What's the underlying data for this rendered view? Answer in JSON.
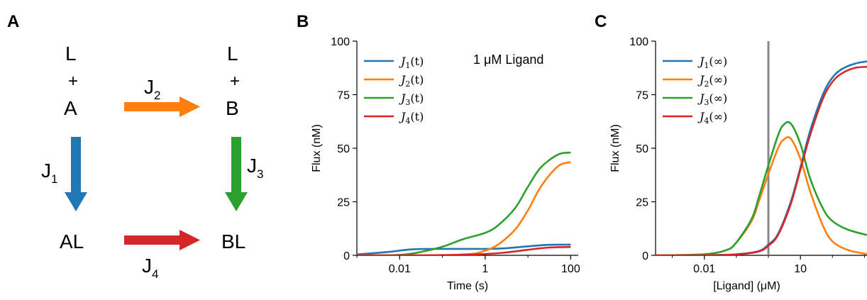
{
  "panel_labels": [
    "A",
    "B",
    "C"
  ],
  "scheme": {
    "top_left": {
      "top": "L",
      "plus": "+",
      "species": "A"
    },
    "top_right": {
      "top": "L",
      "plus": "+",
      "species": "B"
    },
    "bottom_left": "AL",
    "bottom_right": "BL",
    "fluxes": [
      {
        "base": "J",
        "sub": "1",
        "color": "#1f77b4"
      },
      {
        "base": "J",
        "sub": "2",
        "color": "#ff7f0e"
      },
      {
        "base": "J",
        "sub": "3",
        "color": "#2ca02c"
      },
      {
        "base": "J",
        "sub": "4",
        "color": "#d62728"
      }
    ]
  },
  "chart_data": [
    {
      "type": "line",
      "panel": "B",
      "xlabel": "Time (s)",
      "ylabel": "Flux (nM)",
      "xscale": "log",
      "xlim": [
        0.001,
        150
      ],
      "ylim": [
        0,
        100
      ],
      "xticks": [
        {
          "value": 0.01,
          "label": "0.01"
        },
        {
          "value": 1,
          "label": "1"
        },
        {
          "value": 100,
          "label": "100"
        }
      ],
      "yticks": [
        {
          "value": 0,
          "label": "0"
        },
        {
          "value": 25,
          "label": "25"
        },
        {
          "value": 50,
          "label": "50"
        },
        {
          "value": 75,
          "label": "75"
        },
        {
          "value": 100,
          "label": "100"
        }
      ],
      "annotation": "1 μM Ligand",
      "legend_position": "top-left",
      "series": [
        {
          "name": "J1(t)",
          "legend": {
            "base": "J",
            "sub": "1",
            "rest": "(t)"
          },
          "color": "#1f77b4",
          "x": [
            0.001,
            0.005,
            0.02,
            0.1,
            0.5,
            1,
            3,
            10,
            30,
            100
          ],
          "y": [
            0.4,
            1.5,
            2.8,
            3.0,
            3.0,
            3.0,
            3.3,
            4.2,
            4.9,
            5.0
          ]
        },
        {
          "name": "J2(t)",
          "legend": {
            "base": "J",
            "sub": "2",
            "rest": "(t)"
          },
          "color": "#ff7f0e",
          "x": [
            0.001,
            0.01,
            0.1,
            0.5,
            1,
            2,
            5,
            10,
            20,
            50,
            100
          ],
          "y": [
            0,
            0,
            0.1,
            0.7,
            2.2,
            5.0,
            12.0,
            21.0,
            32.0,
            41.5,
            43.5
          ]
        },
        {
          "name": "J3(t)",
          "legend": {
            "base": "J",
            "sub": "3",
            "rest": "(t)"
          },
          "color": "#2ca02c",
          "x": [
            0.001,
            0.01,
            0.03,
            0.1,
            0.3,
            1,
            2,
            5,
            10,
            20,
            50,
            100
          ],
          "y": [
            0,
            0.2,
            1.5,
            4.0,
            7.5,
            10.5,
            14.0,
            22.0,
            32.0,
            41.0,
            47.0,
            48.0
          ]
        },
        {
          "name": "J4(t)",
          "legend": {
            "base": "J",
            "sub": "4",
            "rest": "(t)"
          },
          "color": "#d62728",
          "x": [
            0.001,
            0.01,
            0.1,
            1,
            3,
            10,
            30,
            100
          ],
          "y": [
            0,
            0,
            0.1,
            0.6,
            1.3,
            2.6,
            3.6,
            3.9
          ]
        }
      ]
    },
    {
      "type": "line",
      "panel": "C",
      "xlabel": "[Ligand] (μM)",
      "ylabel": "Flux (nM)",
      "xscale": "log",
      "xlim": [
        0.0003,
        1200
      ],
      "ylim": [
        0,
        100
      ],
      "xticks": [
        {
          "value": 0.01,
          "label": "0.01"
        },
        {
          "value": 10,
          "label": "10"
        }
      ],
      "yticks": [
        {
          "value": 0,
          "label": "0"
        },
        {
          "value": 25,
          "label": "25"
        },
        {
          "value": 50,
          "label": "50"
        },
        {
          "value": 75,
          "label": "75"
        },
        {
          "value": 100,
          "label": "100"
        }
      ],
      "vline": {
        "x": 1,
        "color": "#888888"
      },
      "legend_position": "top-left",
      "series": [
        {
          "name": "J1(∞)",
          "legend": {
            "base": "J",
            "sub": "1",
            "rest": "(∞)"
          },
          "color": "#1f77b4",
          "x": [
            0.0003,
            0.01,
            0.1,
            0.5,
            1,
            2,
            5,
            10,
            20,
            50,
            100,
            200,
            500,
            1200
          ],
          "y": [
            0,
            0.1,
            0.5,
            2.0,
            5.0,
            10.0,
            25.0,
            41.0,
            58.0,
            75.0,
            83.0,
            87.0,
            89.5,
            90.5
          ]
        },
        {
          "name": "J2(∞)",
          "legend": {
            "base": "J",
            "sub": "2",
            "rest": "(∞)"
          },
          "color": "#ff7f0e",
          "x": [
            0.0003,
            0.01,
            0.05,
            0.1,
            0.3,
            0.5,
            1,
            2,
            3,
            5,
            10,
            20,
            50,
            100,
            300,
            1200
          ],
          "y": [
            0,
            0.5,
            2.5,
            6.0,
            16.0,
            25.0,
            38.0,
            50.0,
            54.0,
            54.5,
            45.0,
            30.0,
            14.0,
            6.5,
            2.5,
            0.6
          ]
        },
        {
          "name": "J3(∞)",
          "legend": {
            "base": "J",
            "sub": "3",
            "rest": "(∞)"
          },
          "color": "#2ca02c",
          "x": [
            0.0003,
            0.01,
            0.05,
            0.1,
            0.3,
            0.5,
            1,
            2,
            3,
            5,
            10,
            20,
            50,
            100,
            300,
            1200
          ],
          "y": [
            0,
            0.5,
            2.5,
            6.0,
            17.0,
            27.0,
            42.0,
            56.0,
            61.0,
            61.5,
            52.0,
            36.0,
            22.0,
            16.0,
            12.0,
            9.5
          ]
        },
        {
          "name": "J4(∞)",
          "legend": {
            "base": "J",
            "sub": "4",
            "rest": "(∞)"
          },
          "color": "#d62728",
          "x": [
            0.0003,
            0.01,
            0.1,
            0.5,
            1,
            2,
            5,
            10,
            20,
            50,
            100,
            200,
            500,
            1200
          ],
          "y": [
            0,
            0,
            0.4,
            1.8,
            4.5,
            9.5,
            24.0,
            40.0,
            56.0,
            73.0,
            81.0,
            85.0,
            87.5,
            88.0
          ]
        }
      ]
    }
  ]
}
